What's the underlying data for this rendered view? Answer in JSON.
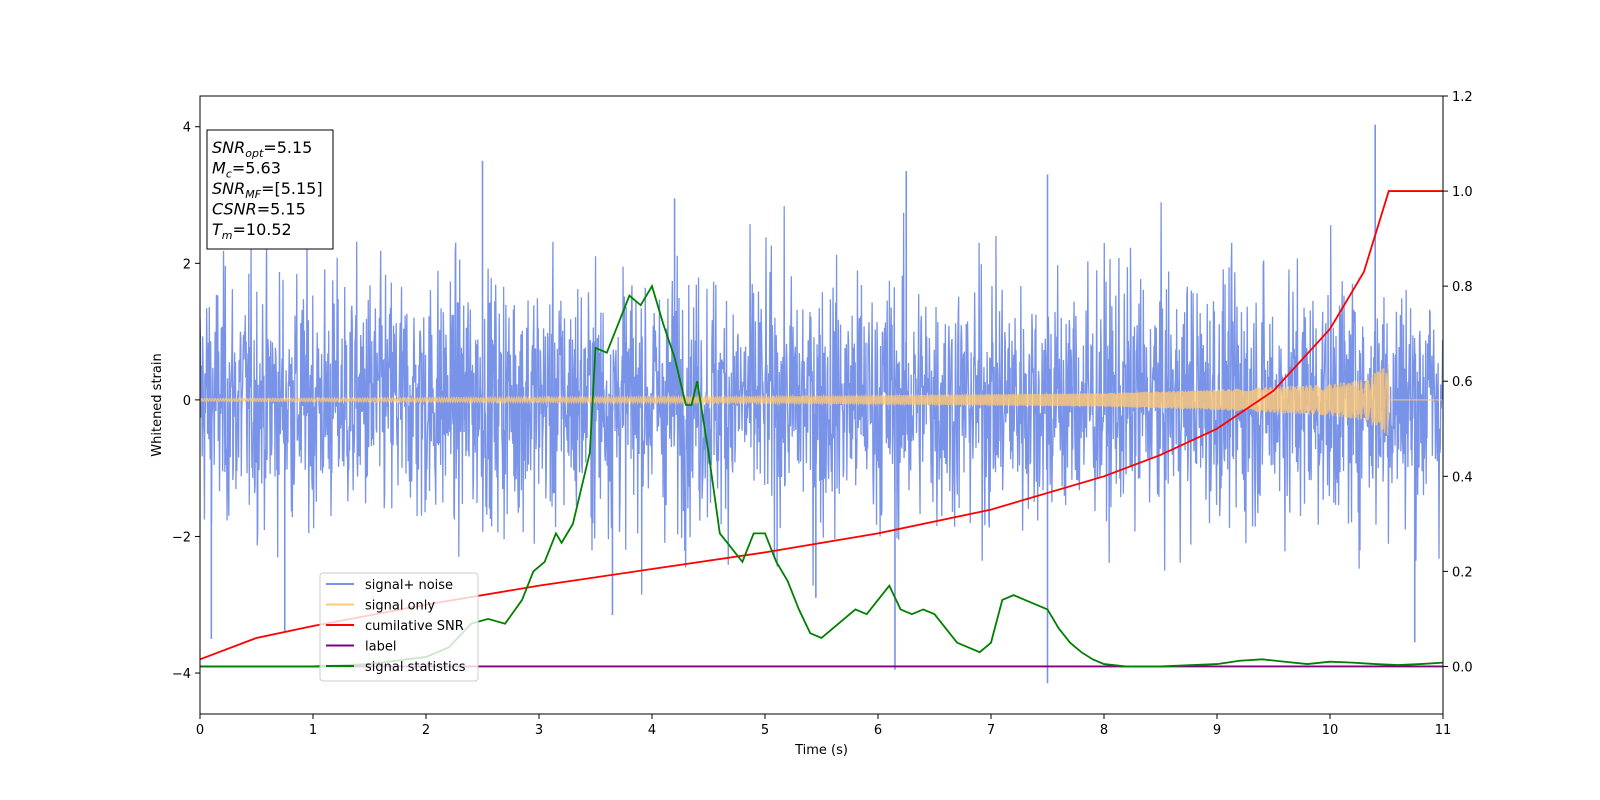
{
  "chart_data": {
    "type": "line",
    "xlabel": "Time (s)",
    "ylabel": "Whitened strain",
    "xlim": [
      0,
      11
    ],
    "ylim": [
      -4.6,
      4.45
    ],
    "y2lim": [
      -0.1,
      1.2
    ],
    "xticks": [
      "0",
      "1",
      "2",
      "3",
      "4",
      "5",
      "6",
      "7",
      "8",
      "9",
      "10",
      "11"
    ],
    "yticks": [
      "4",
      "2",
      "0",
      "−2",
      "−4"
    ],
    "y2ticks": [
      "1.2",
      "1.0",
      "0.8",
      "0.6",
      "0.4",
      "0.2",
      "0.0"
    ],
    "annotations": [
      {
        "main": "SNR",
        "sub": "opt",
        "value": "=5.15"
      },
      {
        "main": "M",
        "sub": "c",
        "value": "=5.63"
      },
      {
        "main": "SNR",
        "sub": "MF",
        "value": "=[5.15]"
      },
      {
        "main": "CSNR",
        "sub": "",
        "value": "=5.15"
      },
      {
        "main": "T",
        "sub": "m",
        "value": "=10.52"
      }
    ],
    "merger_time": 10.52,
    "series": [
      {
        "name": "signal+ noise",
        "color": "#7893e8",
        "axis": "left",
        "noise_std": 0.9,
        "spikes": [
          [
            0.1,
            -3.5
          ],
          [
            0.75,
            -3.4
          ],
          [
            2.5,
            3.5
          ],
          [
            3.65,
            -3.15
          ],
          [
            6.15,
            -3.95
          ],
          [
            6.25,
            3.35
          ],
          [
            7.5,
            -4.15
          ],
          [
            7.5,
            3.3
          ],
          [
            10.4,
            4.03
          ],
          [
            10.75,
            -3.55
          ],
          [
            4.2,
            2.95
          ],
          [
            5.45,
            -2.9
          ]
        ]
      },
      {
        "name": "signal only",
        "color": "#ffc875",
        "axis": "left",
        "envelope": {
          "t": [
            0,
            5,
            8,
            9,
            10,
            10.3,
            10.5,
            10.52
          ],
          "amp": [
            0.02,
            0.05,
            0.1,
            0.15,
            0.23,
            0.3,
            0.5,
            0.55
          ]
        }
      },
      {
        "name": "cumilative SNR",
        "color": "#ff0000",
        "axis": "right",
        "x": [
          0,
          0.5,
          1,
          2,
          3,
          4,
          5,
          6,
          7,
          8,
          8.5,
          9,
          9.5,
          10,
          10.3,
          10.52,
          11
        ],
        "values": [
          0.015,
          0.06,
          0.085,
          0.13,
          0.17,
          0.205,
          0.24,
          0.28,
          0.33,
          0.4,
          0.445,
          0.5,
          0.58,
          0.71,
          0.83,
          1.0,
          1.0
        ]
      },
      {
        "name": "label",
        "color": "#800080",
        "axis": "right",
        "x": [
          0,
          11
        ],
        "values": [
          0,
          0
        ]
      },
      {
        "name": "signal statistics",
        "color": "#008000",
        "axis": "right",
        "x": [
          0,
          0.5,
          1,
          1.5,
          2,
          2.2,
          2.4,
          2.55,
          2.7,
          2.85,
          2.95,
          3.05,
          3.15,
          3.2,
          3.3,
          3.4,
          3.45,
          3.5,
          3.6,
          3.7,
          3.8,
          3.9,
          4.0,
          4.1,
          4.2,
          4.3,
          4.35,
          4.4,
          4.5,
          4.6,
          4.7,
          4.8,
          4.9,
          5.0,
          5.1,
          5.2,
          5.3,
          5.4,
          5.5,
          5.6,
          5.7,
          5.8,
          5.9,
          6.0,
          6.1,
          6.2,
          6.3,
          6.4,
          6.5,
          6.6,
          6.7,
          6.8,
          6.9,
          7.0,
          7.1,
          7.2,
          7.3,
          7.4,
          7.5,
          7.6,
          7.7,
          7.8,
          7.9,
          8.0,
          8.2,
          8.5,
          9.0,
          9.2,
          9.4,
          9.6,
          9.8,
          10.0,
          10.2,
          10.4,
          10.6,
          10.8,
          11.0
        ],
        "values": [
          0.0,
          0.0,
          0.0,
          0.005,
          0.02,
          0.04,
          0.09,
          0.1,
          0.09,
          0.14,
          0.2,
          0.22,
          0.28,
          0.26,
          0.3,
          0.4,
          0.45,
          0.67,
          0.66,
          0.72,
          0.78,
          0.76,
          0.8,
          0.72,
          0.65,
          0.55,
          0.55,
          0.6,
          0.45,
          0.28,
          0.25,
          0.22,
          0.28,
          0.28,
          0.22,
          0.18,
          0.12,
          0.07,
          0.06,
          0.08,
          0.1,
          0.12,
          0.11,
          0.14,
          0.17,
          0.12,
          0.11,
          0.12,
          0.11,
          0.08,
          0.05,
          0.04,
          0.03,
          0.05,
          0.14,
          0.15,
          0.14,
          0.13,
          0.12,
          0.08,
          0.05,
          0.03,
          0.015,
          0.005,
          0.0,
          0.0,
          0.005,
          0.012,
          0.015,
          0.01,
          0.005,
          0.01,
          0.008,
          0.005,
          0.003,
          0.005,
          0.008
        ]
      }
    ]
  }
}
